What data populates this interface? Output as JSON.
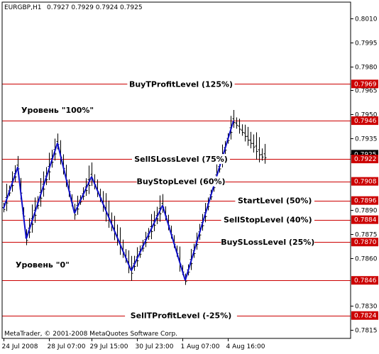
{
  "header": {
    "symbol": "EURGBP,H1",
    "ohlc": "0.7927 0.7929 0.7924 0.7925"
  },
  "copyright": "MetaTrader, © 2001-2008 MetaQuotes Software Corp.",
  "colors": {
    "level_line": "#cc0000",
    "level_badge": "#cc0000",
    "current_badge": "#000000",
    "zigzag": "#1010c8",
    "bars": "#000000"
  },
  "chart_data": {
    "type": "line",
    "title": "EURGBP,H1",
    "ylim": [
      0.781,
      0.8016
    ],
    "y_ticks": [
      0.801,
      0.7995,
      0.798,
      0.7965,
      0.795,
      0.7935,
      0.7925,
      0.789,
      0.7875,
      0.786,
      0.783,
      0.7815
    ],
    "x_ticks": [
      "24 Jul 2008",
      "28 Jul 07:00",
      "29 Jul 15:00",
      "30 Jul 23:00",
      "1 Aug 07:00",
      "4 Aug 16:00"
    ],
    "current_price": "0.7925",
    "levels": [
      {
        "name": "BuyTProfitLevel (125%)",
        "price": 0.7969,
        "badge": "0.7969",
        "label_align": "center"
      },
      {
        "name": "SellSLossLevel (75%)",
        "price": 0.7922,
        "badge": "0.7922",
        "label_align": "center"
      },
      {
        "name": "BuyStopLevel (60%)",
        "price": 0.7908,
        "badge": "0.7908",
        "label_align": "center"
      },
      {
        "name": "StartLevel (50%)",
        "price": 0.7896,
        "badge": "0.7896",
        "label_align": "right"
      },
      {
        "name": "SellStopLevel (40%)",
        "price": 0.7884,
        "badge": "0.7884",
        "label_align": "right"
      },
      {
        "name": "BuySLossLevel (25%)",
        "price": 0.787,
        "badge": "0.7870",
        "label_align": "right"
      },
      {
        "name": "",
        "price": 0.7946,
        "badge": "0.7946",
        "label_align": "none"
      },
      {
        "name": "",
        "price": 0.7846,
        "badge": "0.7846",
        "label_align": "none"
      },
      {
        "name": "SellTProfitLevel (-25%)",
        "price": 0.7824,
        "badge": "0.7824",
        "label_align": "center"
      }
    ],
    "annotations": [
      {
        "text": "Уровень \"100%\"",
        "price": 0.795,
        "bar": 12
      },
      {
        "text": "Уровень \"0\"",
        "price": 0.785,
        "bar": 15
      }
    ],
    "zigzag": [
      {
        "bar": 0,
        "price": 0.7891
      },
      {
        "bar": 5,
        "price": 0.7917
      },
      {
        "bar": 8,
        "price": 0.7872
      },
      {
        "bar": 19,
        "price": 0.7932
      },
      {
        "bar": 25,
        "price": 0.7888
      },
      {
        "bar": 31,
        "price": 0.7911
      },
      {
        "bar": 45,
        "price": 0.7852
      },
      {
        "bar": 56,
        "price": 0.7893
      },
      {
        "bar": 64,
        "price": 0.7846
      },
      {
        "bar": 81,
        "price": 0.7946
      }
    ],
    "bar_count": 93
  }
}
